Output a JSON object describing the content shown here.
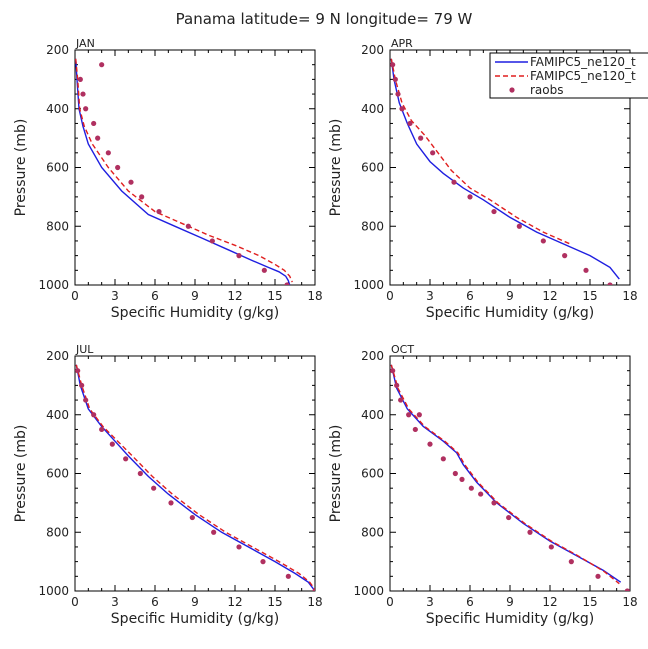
{
  "figure": {
    "title": "Panama  latitude= 9 N longitude= 79 W"
  },
  "legend": {
    "entries": [
      {
        "label": "FAMIPC5_ne120_t",
        "style": "solid",
        "color": "#1f1fe0"
      },
      {
        "label": "FAMIPC5_ne120_t",
        "style": "dashed",
        "color": "#e01f1f"
      },
      {
        "label": "raobs",
        "style": "dots",
        "color": "#b03060"
      }
    ]
  },
  "chart_data": [
    {
      "type": "line",
      "panel": "JAN",
      "title": "JAN",
      "xlabel": "Specific Humidity (g/kg)",
      "ylabel": "Pressure (mb)",
      "xlim": [
        0,
        18
      ],
      "ylim": [
        1000,
        200
      ],
      "xticks": [
        "0",
        "3",
        "6",
        "9",
        "12",
        "15",
        "18"
      ],
      "yticks": [
        "200",
        "400",
        "600",
        "800",
        "1000"
      ],
      "series": [
        {
          "name": "FAMIPC5_ne120_t",
          "style": "solid",
          "x": [
            0.05,
            0.15,
            0.3,
            0.6,
            1.0,
            2.0,
            3.5,
            5.5,
            7.5,
            9.5,
            11.5,
            13.2,
            14.5,
            15.3,
            15.8,
            16.0,
            16.1
          ],
          "y": [
            230,
            300,
            400,
            460,
            520,
            600,
            680,
            760,
            800,
            840,
            880,
            915,
            940,
            955,
            970,
            985,
            1000
          ]
        },
        {
          "name": "FAMIPC5_ne120_t",
          "style": "dashed",
          "x": [
            0.05,
            0.2,
            0.35,
            0.7,
            1.3,
            2.5,
            4.0,
            6.0,
            8.0,
            10.0,
            12.0,
            13.8,
            15.0,
            15.7,
            16.1,
            16.3
          ],
          "y": [
            230,
            300,
            400,
            460,
            520,
            600,
            680,
            750,
            790,
            830,
            865,
            900,
            930,
            950,
            970,
            990
          ]
        },
        {
          "name": "raobs",
          "style": "dots",
          "x": [
            2.0,
            0.4,
            0.6,
            0.8,
            1.4,
            1.7,
            2.5,
            3.2,
            4.2,
            5.0,
            6.3,
            8.5,
            10.3,
            12.3,
            14.2,
            15.9
          ],
          "y": [
            250,
            300,
            350,
            400,
            450,
            500,
            550,
            600,
            650,
            700,
            750,
            800,
            850,
            900,
            950,
            1000
          ]
        }
      ]
    },
    {
      "type": "line",
      "panel": "APR",
      "title": "APR",
      "xlabel": "Specific Humidity (g/kg)",
      "ylabel": "Pressure (mb)",
      "xlim": [
        0,
        18
      ],
      "ylim": [
        1000,
        200
      ],
      "xticks": [
        "0",
        "3",
        "6",
        "9",
        "12",
        "15",
        "18"
      ],
      "yticks": [
        "200",
        "400",
        "600",
        "800",
        "1000"
      ],
      "series": [
        {
          "name": "FAMIPC5_ne120_t",
          "style": "solid",
          "x": [
            0.1,
            0.3,
            0.7,
            1.3,
            2.0,
            3.0,
            4.0,
            5.5,
            7.0,
            9.0,
            11.0,
            13.0,
            15.0,
            16.5,
            17.2
          ],
          "y": [
            230,
            300,
            380,
            450,
            520,
            580,
            620,
            670,
            710,
            770,
            820,
            860,
            900,
            940,
            980
          ]
        },
        {
          "name": "FAMIPC5_ne120_t",
          "style": "dashed",
          "x": [
            0.1,
            0.4,
            0.9,
            1.6,
            2.6,
            3.6,
            4.6,
            6.0,
            7.5,
            9.5,
            11.5,
            13.5
          ],
          "y": [
            230,
            300,
            380,
            440,
            490,
            550,
            610,
            670,
            710,
            770,
            820,
            860
          ]
        },
        {
          "name": "raobs",
          "style": "dots",
          "x": [
            0.2,
            0.4,
            0.6,
            0.9,
            1.5,
            2.3,
            3.2,
            4.8,
            6.0,
            7.8,
            9.7,
            11.5,
            13.1,
            14.7,
            16.5
          ],
          "y": [
            250,
            300,
            350,
            400,
            450,
            500,
            550,
            650,
            700,
            750,
            800,
            850,
            900,
            950,
            1000
          ]
        }
      ]
    },
    {
      "type": "line",
      "panel": "JUL",
      "title": "JUL",
      "xlabel": "Specific Humidity (g/kg)",
      "ylabel": "Pressure (mb)",
      "xlim": [
        0,
        18
      ],
      "ylim": [
        1000,
        200
      ],
      "xticks": [
        "0",
        "3",
        "6",
        "9",
        "12",
        "15",
        "18"
      ],
      "yticks": [
        "200",
        "400",
        "600",
        "800",
        "1000"
      ],
      "series": [
        {
          "name": "FAMIPC5_ne120_t",
          "style": "solid",
          "x": [
            0.1,
            0.4,
            1.0,
            2.0,
            3.0,
            4.0,
            5.5,
            7.0,
            9.0,
            11.0,
            13.0,
            15.0,
            16.5,
            17.5,
            18.0
          ],
          "y": [
            230,
            300,
            380,
            440,
            490,
            540,
            610,
            670,
            740,
            800,
            850,
            900,
            940,
            970,
            1000
          ]
        },
        {
          "name": "FAMIPC5_ne120_t",
          "style": "dashed",
          "x": [
            0.1,
            0.5,
            1.1,
            2.1,
            3.2,
            4.3,
            5.8,
            7.3,
            9.3,
            11.3,
            13.3,
            15.3,
            16.8,
            17.6,
            18.0
          ],
          "y": [
            230,
            300,
            380,
            440,
            490,
            540,
            610,
            670,
            740,
            800,
            850,
            900,
            940,
            970,
            995
          ]
        },
        {
          "name": "raobs",
          "style": "dots",
          "x": [
            0.2,
            0.5,
            0.8,
            1.4,
            2.0,
            2.8,
            3.8,
            4.9,
            5.9,
            7.2,
            8.8,
            10.4,
            12.3,
            14.1,
            16.0,
            18.0
          ],
          "y": [
            250,
            300,
            350,
            400,
            450,
            500,
            550,
            600,
            650,
            700,
            750,
            800,
            850,
            900,
            950,
            1000
          ]
        }
      ]
    },
    {
      "type": "line",
      "panel": "OCT",
      "title": "OCT",
      "xlabel": "Specific Humidity (g/kg)",
      "ylabel": "Pressure (mb)",
      "xlim": [
        0,
        18
      ],
      "ylim": [
        1000,
        200
      ],
      "xticks": [
        "0",
        "3",
        "6",
        "9",
        "12",
        "15",
        "18"
      ],
      "yticks": [
        "200",
        "400",
        "600",
        "800",
        "1000"
      ],
      "series": [
        {
          "name": "FAMIPC5_ne120_t",
          "style": "solid",
          "x": [
            0.1,
            0.5,
            1.3,
            2.5,
            4.0,
            5.0,
            5.5,
            6.5,
            8.0,
            10.0,
            12.0,
            14.0,
            16.0,
            17.3
          ],
          "y": [
            230,
            310,
            380,
            440,
            490,
            530,
            570,
            630,
            700,
            770,
            830,
            880,
            930,
            970
          ]
        },
        {
          "name": "FAMIPC5_ne120_t",
          "style": "dashed",
          "x": [
            0.1,
            0.6,
            1.4,
            2.6,
            4.1,
            5.1,
            5.6,
            6.6,
            8.1,
            10.1,
            12.1,
            14.1,
            16.1,
            17.2
          ],
          "y": [
            230,
            310,
            380,
            440,
            490,
            530,
            570,
            630,
            700,
            770,
            830,
            880,
            935,
            975
          ]
        },
        {
          "name": "raobs",
          "style": "dots",
          "x": [
            0.2,
            0.5,
            0.8,
            1.4,
            1.9,
            2.2,
            3.0,
            4.0,
            4.9,
            5.4,
            6.1,
            6.8,
            7.8,
            8.9,
            10.5,
            12.1,
            13.6,
            15.6,
            17.8
          ],
          "y": [
            250,
            300,
            350,
            400,
            450,
            400,
            500,
            550,
            600,
            620,
            650,
            670,
            700,
            750,
            800,
            850,
            900,
            950,
            1000
          ]
        }
      ]
    }
  ]
}
